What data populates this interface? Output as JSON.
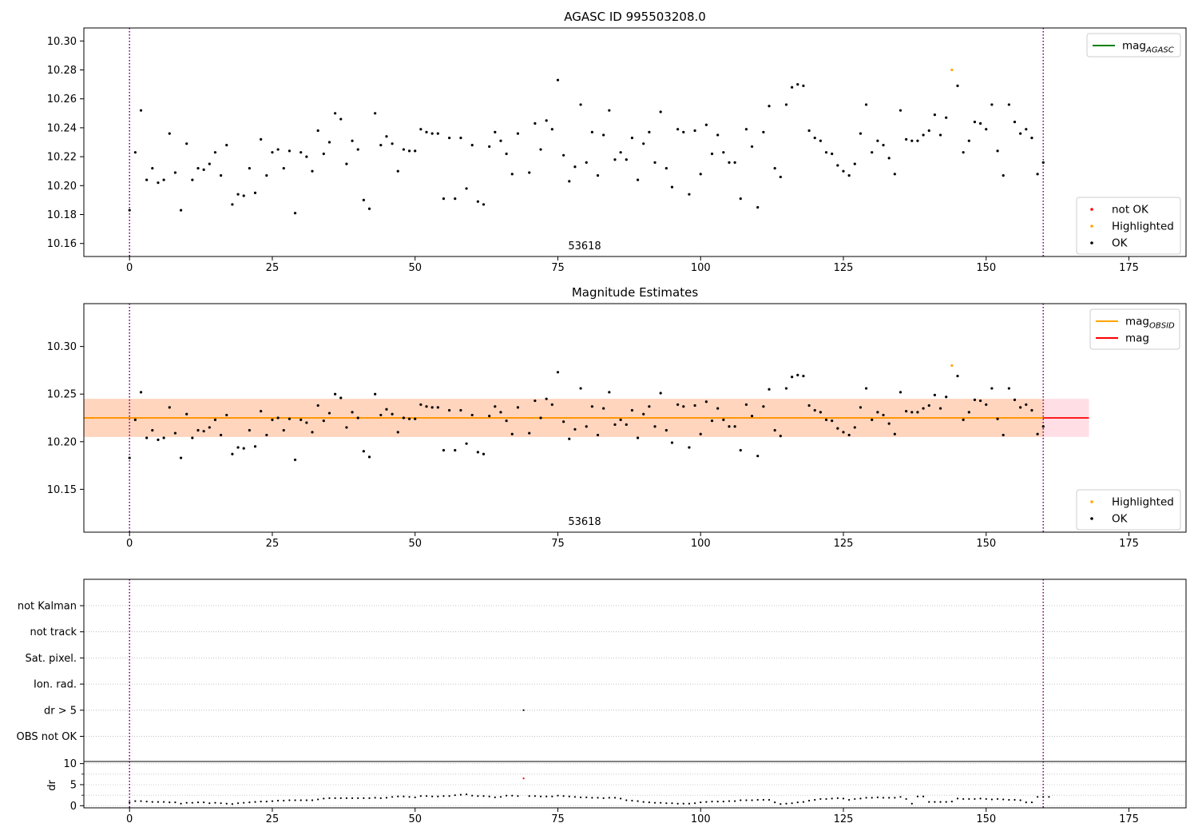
{
  "colors": {
    "ok": "#000000",
    "not_ok": "#ff0000",
    "highlighted": "#ffa500",
    "agasc_line": "#008000",
    "obsid_line": "#ffa500",
    "mag_line": "#ff0000",
    "band_mag": "#ffc0cb",
    "band_obsid": "#ffd2b0",
    "vline": "#800080"
  },
  "chart_data": [
    {
      "id": "top",
      "type": "scatter",
      "title": "AGASC ID 995503208.0",
      "xlim": [
        -8,
        185
      ],
      "ylim": [
        10.151,
        10.309
      ],
      "xticks": [
        0,
        25,
        50,
        75,
        100,
        125,
        150,
        175
      ],
      "yticks": [
        10.16,
        10.18,
        10.2,
        10.22,
        10.24,
        10.26,
        10.28,
        10.3
      ],
      "ytick_labels": [
        "10.16",
        "10.18",
        "10.20",
        "10.22",
        "10.24",
        "10.26",
        "10.28",
        "10.30"
      ],
      "annotation": {
        "text": "53618",
        "x": 80,
        "y": 10.156
      },
      "vlines": [
        0,
        160
      ],
      "legends": [
        {
          "placement": "top-right",
          "entries": [
            {
              "label": "mag",
              "sub": "AGASC",
              "kind": "line",
              "color": "#008000"
            }
          ]
        },
        {
          "placement": "bottom-right",
          "entries": [
            {
              "label": "not OK",
              "kind": "dot",
              "color": "#ff0000"
            },
            {
              "label": "Highlighted",
              "kind": "dot",
              "color": "#ffa500"
            },
            {
              "label": "OK",
              "kind": "dot",
              "color": "#000000"
            }
          ]
        }
      ],
      "series": [
        {
          "name": "OK",
          "color": "#000000",
          "points": [
            [
              0,
              10.183
            ],
            [
              1,
              10.223
            ],
            [
              2,
              10.252
            ],
            [
              3,
              10.204
            ],
            [
              4,
              10.212
            ],
            [
              5,
              10.202
            ],
            [
              6,
              10.204
            ],
            [
              7,
              10.236
            ],
            [
              8,
              10.209
            ],
            [
              9,
              10.183
            ],
            [
              10,
              10.229
            ],
            [
              11,
              10.204
            ],
            [
              12,
              10.212
            ],
            [
              13,
              10.211
            ],
            [
              14,
              10.215
            ],
            [
              15,
              10.223
            ],
            [
              16,
              10.207
            ],
            [
              17,
              10.228
            ],
            [
              18,
              10.187
            ],
            [
              19,
              10.194
            ],
            [
              20,
              10.193
            ],
            [
              21,
              10.212
            ],
            [
              22,
              10.195
            ],
            [
              23,
              10.232
            ],
            [
              24,
              10.207
            ],
            [
              25,
              10.223
            ],
            [
              26,
              10.225
            ],
            [
              27,
              10.212
            ],
            [
              28,
              10.224
            ],
            [
              29,
              10.181
            ],
            [
              30,
              10.223
            ],
            [
              31,
              10.22
            ],
            [
              32,
              10.21
            ],
            [
              33,
              10.238
            ],
            [
              34,
              10.222
            ],
            [
              35,
              10.23
            ],
            [
              36,
              10.25
            ],
            [
              37,
              10.246
            ],
            [
              38,
              10.215
            ],
            [
              39,
              10.231
            ],
            [
              40,
              10.225
            ],
            [
              41,
              10.19
            ],
            [
              42,
              10.184
            ],
            [
              43,
              10.25
            ],
            [
              44,
              10.228
            ],
            [
              45,
              10.234
            ],
            [
              46,
              10.229
            ],
            [
              47,
              10.21
            ],
            [
              48,
              10.225
            ],
            [
              49,
              10.224
            ],
            [
              50,
              10.224
            ],
            [
              51,
              10.239
            ],
            [
              52,
              10.237
            ],
            [
              53,
              10.236
            ],
            [
              54,
              10.236
            ],
            [
              55,
              10.191
            ],
            [
              56,
              10.233
            ],
            [
              57,
              10.191
            ],
            [
              58,
              10.233
            ],
            [
              59,
              10.198
            ],
            [
              60,
              10.228
            ],
            [
              61,
              10.189
            ],
            [
              62,
              10.187
            ],
            [
              63,
              10.227
            ],
            [
              64,
              10.237
            ],
            [
              65,
              10.231
            ],
            [
              66,
              10.222
            ],
            [
              67,
              10.208
            ],
            [
              68,
              10.236
            ],
            [
              70,
              10.209
            ],
            [
              71,
              10.243
            ],
            [
              72,
              10.225
            ],
            [
              73,
              10.245
            ],
            [
              74,
              10.239
            ],
            [
              75,
              10.273
            ],
            [
              76,
              10.221
            ],
            [
              77,
              10.203
            ],
            [
              78,
              10.213
            ],
            [
              79,
              10.256
            ],
            [
              80,
              10.216
            ],
            [
              81,
              10.237
            ],
            [
              82,
              10.207
            ],
            [
              83,
              10.235
            ],
            [
              84,
              10.252
            ],
            [
              85,
              10.218
            ],
            [
              86,
              10.223
            ],
            [
              87,
              10.218
            ],
            [
              88,
              10.233
            ],
            [
              89,
              10.204
            ],
            [
              90,
              10.229
            ],
            [
              91,
              10.237
            ],
            [
              92,
              10.216
            ],
            [
              93,
              10.251
            ],
            [
              94,
              10.212
            ],
            [
              95,
              10.199
            ],
            [
              96,
              10.239
            ],
            [
              97,
              10.237
            ],
            [
              98,
              10.194
            ],
            [
              99,
              10.238
            ],
            [
              100,
              10.208
            ],
            [
              101,
              10.242
            ],
            [
              102,
              10.222
            ],
            [
              103,
              10.235
            ],
            [
              104,
              10.223
            ],
            [
              105,
              10.216
            ],
            [
              106,
              10.216
            ],
            [
              107,
              10.191
            ],
            [
              108,
              10.239
            ],
            [
              109,
              10.227
            ],
            [
              110,
              10.185
            ],
            [
              111,
              10.237
            ],
            [
              112,
              10.255
            ],
            [
              113,
              10.212
            ],
            [
              114,
              10.206
            ],
            [
              115,
              10.256
            ],
            [
              116,
              10.268
            ],
            [
              117,
              10.27
            ],
            [
              118,
              10.269
            ],
            [
              119,
              10.238
            ],
            [
              120,
              10.233
            ],
            [
              121,
              10.231
            ],
            [
              122,
              10.223
            ],
            [
              123,
              10.222
            ],
            [
              124,
              10.214
            ],
            [
              125,
              10.21
            ],
            [
              126,
              10.207
            ],
            [
              127,
              10.215
            ],
            [
              128,
              10.236
            ],
            [
              129,
              10.256
            ],
            [
              130,
              10.223
            ],
            [
              131,
              10.231
            ],
            [
              132,
              10.228
            ],
            [
              133,
              10.219
            ],
            [
              134,
              10.208
            ],
            [
              135,
              10.252
            ],
            [
              136,
              10.232
            ],
            [
              137,
              10.231
            ],
            [
              138,
              10.231
            ],
            [
              139,
              10.235
            ],
            [
              140,
              10.238
            ],
            [
              141,
              10.249
            ],
            [
              142,
              10.235
            ],
            [
              143,
              10.247
            ],
            [
              145,
              10.269
            ],
            [
              146,
              10.223
            ],
            [
              147,
              10.231
            ],
            [
              148,
              10.244
            ],
            [
              149,
              10.243
            ],
            [
              150,
              10.239
            ],
            [
              151,
              10.256
            ],
            [
              152,
              10.224
            ],
            [
              153,
              10.207
            ],
            [
              154,
              10.256
            ],
            [
              155,
              10.244
            ],
            [
              156,
              10.236
            ],
            [
              157,
              10.239
            ],
            [
              158,
              10.233
            ],
            [
              159,
              10.208
            ],
            [
              160,
              10.216
            ]
          ]
        },
        {
          "name": "Highlighted",
          "color": "#ffa500",
          "points": [
            [
              144,
              10.28
            ]
          ]
        }
      ]
    },
    {
      "id": "middle",
      "type": "scatter",
      "title": "Magnitude Estimates",
      "xlim": [
        -8,
        185
      ],
      "ylim": [
        10.105,
        10.345
      ],
      "xticks": [
        0,
        25,
        50,
        75,
        100,
        125,
        150,
        175
      ],
      "yticks": [
        10.15,
        10.2,
        10.25,
        10.3
      ],
      "ytick_labels": [
        "10.15",
        "10.20",
        "10.25",
        "10.30"
      ],
      "annotation": {
        "text": "53618",
        "x": 80,
        "y": 10.112
      },
      "vlines": [
        0,
        160
      ],
      "bands": [
        {
          "x": [
            -8,
            168
          ],
          "y": [
            10.205,
            10.245
          ],
          "color": "#ffc0cb",
          "opacity": 0.5
        },
        {
          "x": [
            -8,
            160
          ],
          "y": [
            10.205,
            10.245
          ],
          "color": "#ffd2b0",
          "opacity": 0.75
        }
      ],
      "lines": [
        {
          "name": "mag",
          "x": [
            -8,
            168
          ],
          "y": 10.225,
          "color": "#ff0000"
        },
        {
          "name": "mag_OBSID",
          "x": [
            -8,
            160
          ],
          "y": 10.225,
          "color": "#ffa500"
        }
      ],
      "legends": [
        {
          "placement": "top-right",
          "entries": [
            {
              "label": "mag",
              "sub": "OBSID",
              "kind": "line",
              "color": "#ffa500"
            },
            {
              "label": "mag",
              "sub": "",
              "kind": "line",
              "color": "#ff0000"
            }
          ]
        },
        {
          "placement": "bottom-right",
          "entries": [
            {
              "label": "Highlighted",
              "kind": "dot",
              "color": "#ffa500"
            },
            {
              "label": "OK",
              "kind": "dot",
              "color": "#000000"
            }
          ]
        }
      ],
      "series_from": "top"
    },
    {
      "id": "flags",
      "type": "scatter",
      "xlim": [
        -8,
        185
      ],
      "categories": [
        "not Kalman",
        "not track",
        "Sat. pixel.",
        "Ion. rad.",
        "dr > 5",
        "OBS not OK"
      ],
      "vlines": [
        0,
        160
      ],
      "points": [
        {
          "x": 69,
          "category": "dr > 5",
          "color": "#000000"
        }
      ]
    },
    {
      "id": "dr",
      "type": "line",
      "ylabel": "dr",
      "xlim": [
        -8,
        185
      ],
      "ylim": [
        -0.5,
        10.5
      ],
      "xticks": [
        0,
        25,
        50,
        75,
        100,
        125,
        150,
        175
      ],
      "yticks": [
        0,
        5,
        10
      ],
      "ytick_labels": [
        "0",
        "5",
        "10"
      ],
      "vlines": [
        0,
        160
      ],
      "values": [
        0.8,
        1.1,
        1.1,
        1.0,
        0.9,
        0.9,
        0.9,
        0.8,
        0.8,
        0.5,
        0.7,
        0.7,
        0.8,
        0.8,
        0.6,
        0.7,
        0.6,
        0.5,
        0.4,
        0.6,
        0.7,
        0.8,
        0.9,
        1.0,
        1.0,
        1.1,
        1.2,
        1.2,
        1.3,
        1.3,
        1.3,
        1.3,
        1.3,
        1.5,
        1.7,
        1.8,
        1.8,
        1.8,
        1.8,
        1.8,
        1.8,
        1.8,
        1.8,
        1.9,
        1.8,
        1.9,
        2.1,
        2.2,
        2.2,
        2.1,
        2.0,
        2.3,
        2.3,
        2.2,
        2.2,
        2.3,
        2.3,
        2.5,
        2.6,
        2.7,
        2.4,
        2.3,
        2.3,
        2.2,
        2.0,
        2.1,
        2.4,
        2.4,
        2.3,
        6.5,
        2.3,
        2.3,
        2.2,
        2.2,
        2.2,
        2.4,
        2.3,
        2.2,
        2.1,
        2.0,
        2.0,
        1.9,
        1.9,
        1.8,
        1.9,
        1.9,
        1.7,
        1.3,
        1.2,
        1.1,
        0.9,
        0.8,
        0.7,
        0.7,
        0.6,
        0.6,
        0.5,
        0.5,
        0.5,
        0.6,
        0.8,
        0.9,
        1.0,
        1.0,
        1.0,
        1.1,
        1.1,
        1.3,
        1.3,
        1.3,
        1.4,
        1.4,
        1.4,
        0.8,
        0.4,
        0.5,
        0.6,
        0.8,
        0.9,
        1.2,
        1.4,
        1.6,
        1.6,
        1.7,
        1.8,
        1.7,
        1.4,
        1.6,
        1.7,
        1.9,
        1.9,
        2.0,
        1.9,
        1.9,
        1.9,
        2.1,
        1.6,
        0.5,
        2.2,
        2.2,
        0.9,
        0.9,
        0.9,
        0.9,
        1.0,
        1.7,
        1.6,
        1.6,
        1.6,
        1.7,
        1.6,
        1.5,
        1.6,
        1.5,
        1.4,
        1.4,
        1.3,
        0.8,
        0.8,
        2.1,
        2.1,
        2.1
      ],
      "highlight": [
        {
          "x": 69,
          "y": 6.5,
          "color": "#ff0000"
        }
      ]
    }
  ]
}
